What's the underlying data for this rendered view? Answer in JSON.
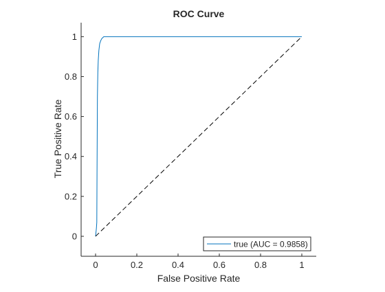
{
  "chart_data": {
    "type": "line",
    "title": "ROC Curve",
    "xlabel": "False Positive Rate",
    "ylabel": "True Positive Rate",
    "xlim": [
      -0.07,
      1.07
    ],
    "ylim": [
      -0.1,
      1.07
    ],
    "xticks": [
      0,
      0.2,
      0.4,
      0.6,
      0.8,
      1
    ],
    "xtick_labels": [
      "0",
      "0.2",
      "0.4",
      "0.6",
      "0.8",
      "1"
    ],
    "yticks": [
      0,
      0.2,
      0.4,
      0.6,
      0.8,
      1
    ],
    "ytick_labels": [
      "0",
      "0.2",
      "0.4",
      "0.6",
      "0.8",
      "1"
    ],
    "grid": false,
    "legend_position": "bottom-right",
    "series": [
      {
        "name": "true (AUC = 0.9858)",
        "color": "#0072BD",
        "style": "solid",
        "x": [
          0,
          0.004,
          0.006,
          0.007,
          0.008,
          0.009,
          0.011,
          0.013,
          0.016,
          0.02,
          0.025,
          0.03,
          0.035,
          0.04,
          0.06,
          0.1,
          0.2,
          0.4,
          0.6,
          0.8,
          1
        ],
        "y": [
          0,
          0.04,
          0.07,
          0.3,
          0.5,
          0.7,
          0.82,
          0.88,
          0.93,
          0.965,
          0.98,
          0.99,
          0.995,
          1,
          1,
          1,
          1,
          1,
          1,
          1,
          1
        ]
      },
      {
        "color": "#000000",
        "style": "dashed",
        "x": [
          0,
          1
        ],
        "y": [
          0,
          1
        ]
      }
    ]
  }
}
